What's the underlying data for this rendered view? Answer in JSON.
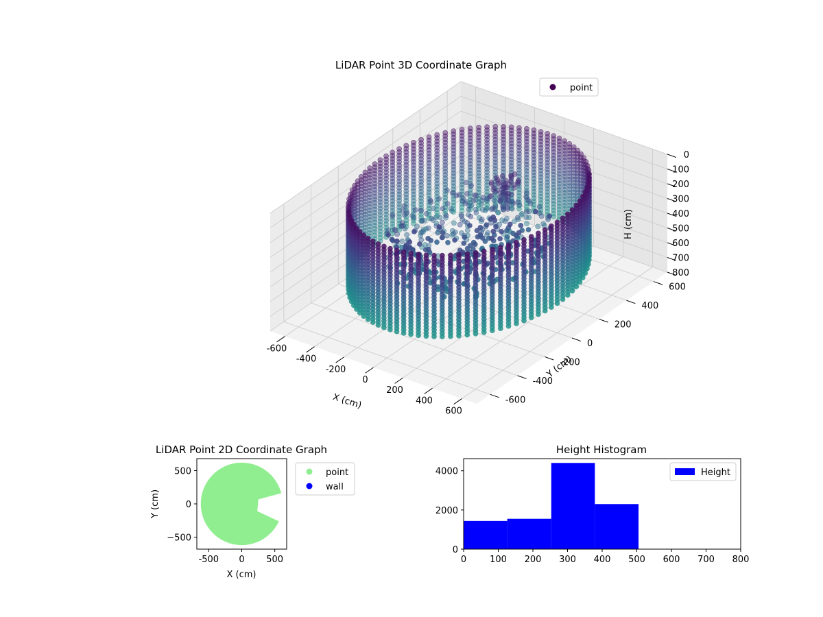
{
  "chart_data": [
    {
      "type": "scatter",
      "title": "LiDAR Point 3D Coordinate Graph",
      "xlabel": "X (cm)",
      "ylabel": "Y (cm)",
      "zlabel": "H (cm)",
      "xlim": [
        -700,
        700
      ],
      "ylim": [
        -700,
        700
      ],
      "zlim": [
        0,
        800
      ],
      "z_axis_inverted": true,
      "x_ticks": [
        "-600",
        "-400",
        "-200",
        "0",
        "200",
        "400",
        "600"
      ],
      "y_ticks": [
        "-600",
        "-400",
        "-200",
        "0",
        "200",
        "400",
        "600"
      ],
      "z_ticks": [
        "0",
        "100",
        "200",
        "300",
        "400",
        "500",
        "600",
        "700",
        "800"
      ],
      "legend": {
        "entries": [
          {
            "label": "point",
            "color": "#440154"
          }
        ],
        "placement": "top-right"
      },
      "colormap": "viridis",
      "grid": true,
      "description_of_shape": "ring of points at radius ~600 cm spanning heights 50-600 cm, with an interior cluster near the centre",
      "ring_radius": 600,
      "ring_height_range": [
        50,
        600
      ]
    },
    {
      "type": "scatter",
      "title": "LiDAR Point 2D Coordinate Graph",
      "xlabel": "X (cm)",
      "ylabel": "Y (cm)",
      "xlim": [
        -680,
        680
      ],
      "ylim": [
        -680,
        680
      ],
      "x_ticks": [
        "-500",
        "0",
        "500"
      ],
      "y_ticks": [
        "500",
        "0",
        "−500"
      ],
      "series": [
        {
          "name": "point",
          "color": "#90ee90"
        },
        {
          "name": "wall",
          "color": "#0000ff"
        }
      ],
      "legend_placement": "outside-right",
      "shape": {
        "disk_center": [
          0,
          0
        ],
        "disk_radius": 620,
        "notch_angle_range_deg": [
          -25,
          15
        ],
        "notch_inner_radius": 260
      }
    },
    {
      "type": "bar",
      "title": "Height Histogram",
      "series": [
        {
          "name": "Height",
          "color": "#0000ff"
        }
      ],
      "bins": [
        {
          "start": 0,
          "end": 126,
          "count": 1440
        },
        {
          "start": 126,
          "end": 253,
          "count": 1550
        },
        {
          "start": 253,
          "end": 379,
          "count": 4400
        },
        {
          "start": 379,
          "end": 505,
          "count": 2300
        }
      ],
      "xlim": [
        0,
        800
      ],
      "ylim": [
        0,
        4620
      ],
      "x_ticks": [
        "0",
        "100",
        "200",
        "300",
        "400",
        "500",
        "600",
        "700",
        "800"
      ],
      "y_ticks": [
        "0",
        "2000",
        "4000"
      ],
      "legend_placement": "top-right"
    }
  ]
}
